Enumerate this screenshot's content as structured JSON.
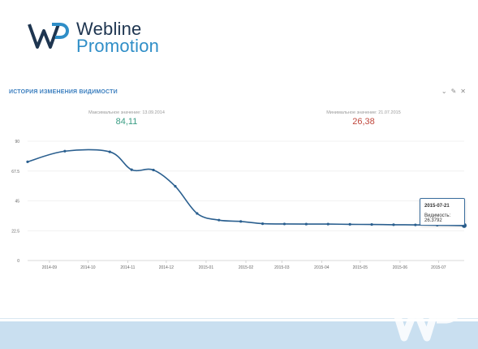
{
  "brand": {
    "line1": "Webline",
    "line2": "Promotion",
    "watermark_icon": "wp-logo-watermark",
    "color_dark": "#1e3550",
    "color_light": "#2f8ec7"
  },
  "panel": {
    "title": "ИСТОРИЯ ИЗМЕНЕНИЯ ВИДИМОСТИ",
    "tools": [
      "chevron-down-icon",
      "edit-icon",
      "close-icon"
    ]
  },
  "stats": {
    "max_label": "Максимальное значение: 13.09.2014",
    "max_value": "84,11",
    "min_label": "Минимальное значение: 21.07.2015",
    "min_value": "26,38"
  },
  "tooltip": {
    "date": "2015-07-21",
    "label": "Видимость: 26.3792"
  },
  "chart_data": {
    "type": "line",
    "title": "",
    "xlabel": "",
    "ylabel": "",
    "ylim": [
      0,
      90
    ],
    "y_ticks": [
      "0",
      "22.5",
      "45",
      "67.5",
      "90"
    ],
    "x_ticks": [
      "2014-09",
      "2014-10",
      "2014-11",
      "2014-12",
      "2015-01",
      "2015-02",
      "2015-03",
      "2015-04",
      "2015-05",
      "2015-06",
      "2015-07"
    ],
    "grid": true,
    "line_color": "#2a5f8f",
    "x": [
      "2014-08-15",
      "2014-09-13",
      "2014-10-18",
      "2014-11-04",
      "2014-11-21",
      "2014-12-08",
      "2014-12-25",
      "2015-01-11",
      "2015-01-28",
      "2015-02-14",
      "2015-03-03",
      "2015-03-20",
      "2015-04-06",
      "2015-04-23",
      "2015-05-10",
      "2015-05-27",
      "2015-06-13",
      "2015-06-30",
      "2015-07-21"
    ],
    "values": [
      74.5,
      82.5,
      82.0,
      68.5,
      68.3,
      56.0,
      35.5,
      30.5,
      29.5,
      27.8,
      27.6,
      27.5,
      27.5,
      27.3,
      27.2,
      27.0,
      26.9,
      26.7,
      26.38
    ],
    "highlight_index": 18
  }
}
